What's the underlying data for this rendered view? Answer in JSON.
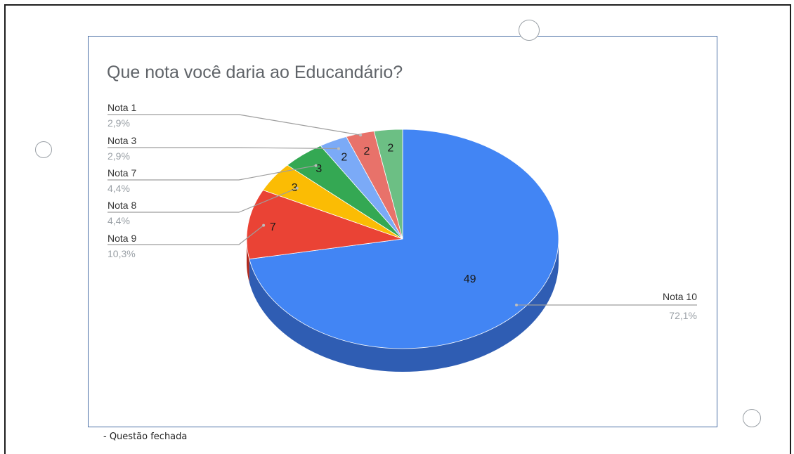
{
  "caption": "- Questão fechada",
  "chart_data": {
    "type": "pie",
    "style": "3d",
    "title": "Que nota você daria ao Educandário?",
    "slices": [
      {
        "label": "Nota 10",
        "value": 49,
        "percent": "72,1%",
        "color": "#4285f4",
        "dark": "#2f5db3"
      },
      {
        "label": "Nota 9",
        "value": 7,
        "percent": "10,3%",
        "color": "#ea4335",
        "dark": "#b0281c"
      },
      {
        "label": "Nota 8",
        "value": 3,
        "percent": "4,4%",
        "color": "#fbbc04",
        "dark": "#c08e00"
      },
      {
        "label": "Nota 7",
        "value": 3,
        "percent": "4,4%",
        "color": "#34a853",
        "dark": "#237a3b"
      },
      {
        "label": "Nota 3",
        "value": 2,
        "percent": "2,9%",
        "color": "#7baaf7",
        "dark": "#5683cc"
      },
      {
        "label": "Nota 1",
        "value": 2,
        "percent": "2,9%",
        "color": "#e8726a",
        "dark": "#b8524b"
      },
      {
        "label": "",
        "value": 2,
        "percent": "",
        "color": "#6cbf84",
        "dark": "#4c9563"
      }
    ],
    "legend_position": "left-and-right callouts"
  }
}
